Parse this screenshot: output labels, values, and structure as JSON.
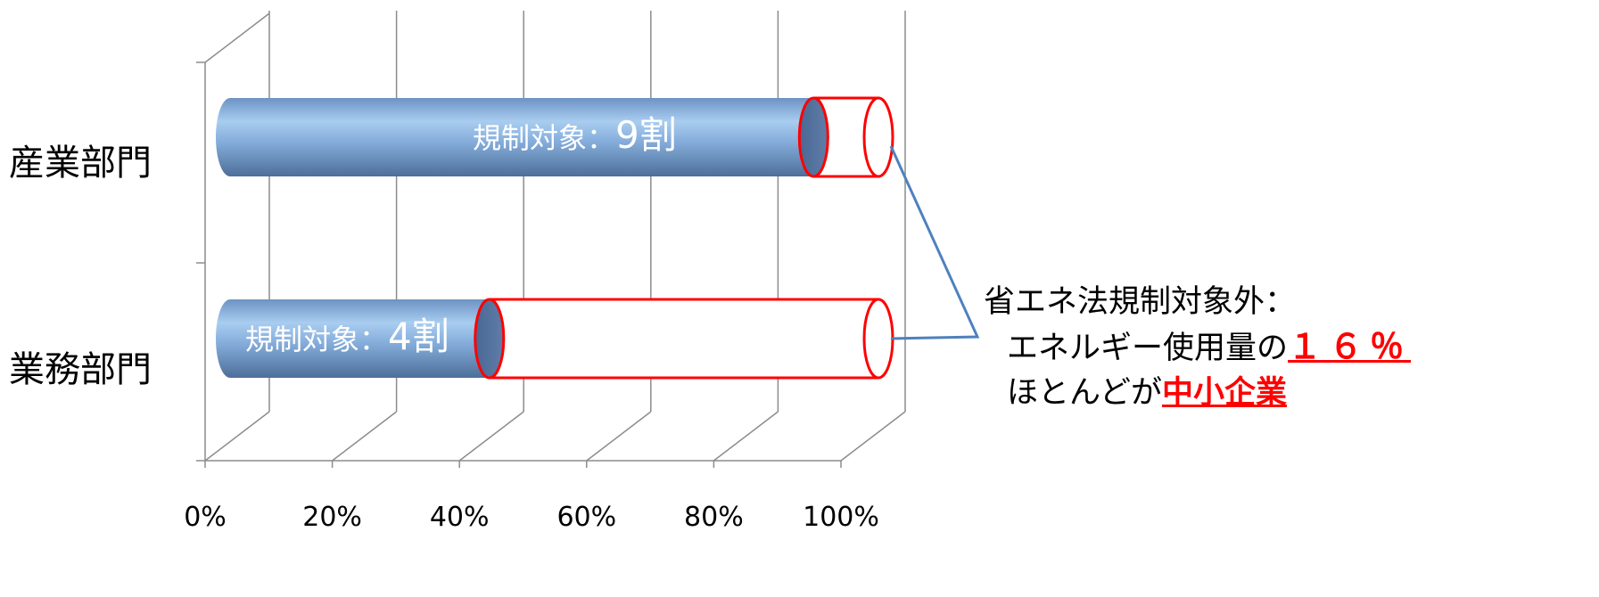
{
  "chart_data": {
    "type": "bar",
    "orientation": "horizontal",
    "style": "3d-cylinder",
    "categories": [
      "産業部門",
      "業務部門"
    ],
    "series": [
      {
        "values": [
          90,
          40
        ],
        "color": "#7aa6d6"
      },
      {
        "values": [
          10,
          60
        ],
        "color": "#ffffff",
        "outline": "#ff0000"
      }
    ],
    "bar_labels": [
      {
        "prefix": "規制対象：",
        "value": "9割"
      },
      {
        "prefix": "規制対象：",
        "value": "4割"
      }
    ],
    "x_ticks": [
      "0%",
      "20%",
      "40%",
      "60%",
      "80%",
      "100%"
    ],
    "xlim": [
      0,
      100
    ],
    "grid": true,
    "title": "",
    "xlabel": "",
    "ylabel": ""
  },
  "callout": {
    "line1": "省エネ法規制対象外：",
    "line2_prefix": "エネルギー使用量の",
    "line2_value": "１６％",
    "line3_prefix": "ほとんどが",
    "line3_value": "中小企業",
    "accent_color": "#ff0000",
    "connector_color": "#4f81bd"
  }
}
